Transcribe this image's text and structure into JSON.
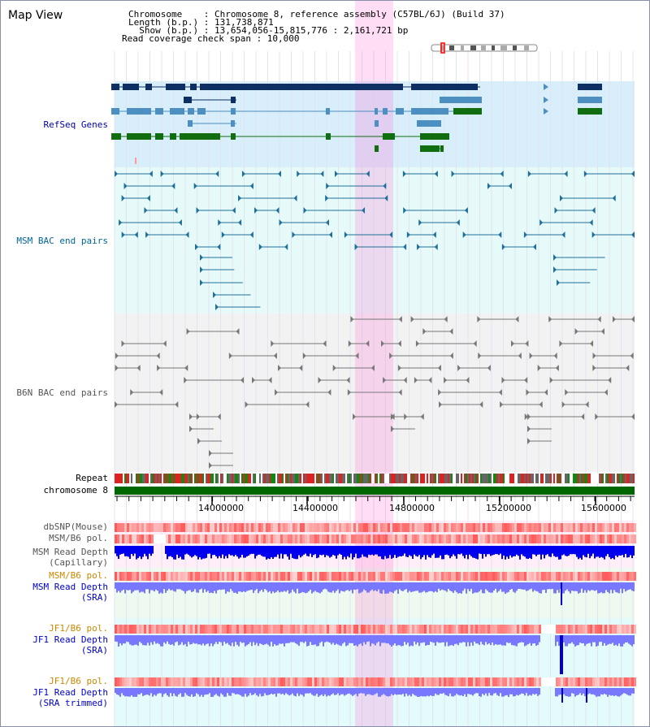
{
  "header": {
    "title": "Map View",
    "info_lines": [
      "Chromosome    : Chromosome 8, reference assembly (C57BL/6J) (Build 37)",
      "Length (b.p.) : 131,738,871",
      "  Show (b.p.) : 13,654,056-15,815,776 : 2,161,721 bp",
      "Read coverage check span : 10,000"
    ]
  },
  "tracks": {
    "refseq": "RefSeq Genes",
    "msm_bac": "MSM BAC end pairs",
    "b6n_bac": "B6N BAC end pairs",
    "repeat": "Repeat",
    "chromosome": "chromosome 8",
    "dbsnp": "dbSNP(Mouse)",
    "msm_b6_pol_1": "MSM/B6 pol.",
    "msm_depth_cap_1": "MSM Read Depth",
    "msm_depth_cap_2": "(Capillary)",
    "msm_b6_pol_2": "MSM/B6 pol.",
    "msm_depth_sra_1": "MSM Read Depth",
    "msm_depth_sra_2": "(SRA)",
    "jf1_pol_1": "JF1/B6 pol.",
    "jf1_depth_sra_1": "JF1 Read Depth",
    "jf1_depth_sra_2": "(SRA)",
    "jf1_pol_2": "JF1/B6 pol.",
    "jf1_depth_trim_1": "JF1 Read Depth",
    "jf1_depth_trim_2": "(SRA trimmed)"
  },
  "axis": {
    "ticks": [
      "14000000",
      "14400000",
      "14800000",
      "15200000",
      "15600000"
    ]
  },
  "colors": {
    "highlight": "#ff66cc",
    "refseq_bg": "#d8eefa",
    "msm_bg": "#e6fafa",
    "b6n_bg": "#f2f2f2",
    "chromosome": "#006600",
    "msm_depth": "#0000ee",
    "sra_depth": "#7777ff",
    "refseq_label": "#0000aa",
    "msm_label": "#006699",
    "b6n_label": "#555555",
    "pol_label": "#cc8800"
  }
}
